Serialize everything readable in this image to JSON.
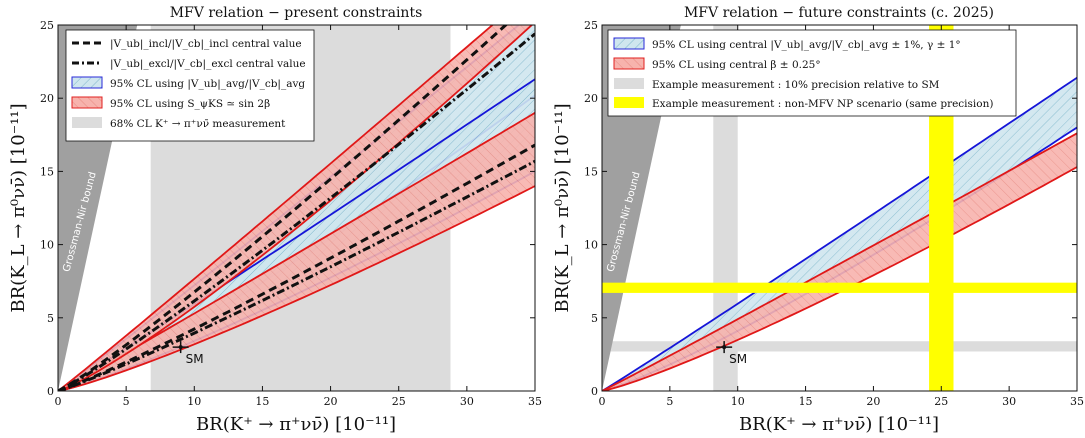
{
  "chart_data": [
    {
      "type": "area",
      "title": "MFV relation  −  present constraints",
      "xlabel": "BR(K⁺ → π⁺νν̄) [10⁻¹¹]",
      "ylabel": "BR(K_L → π⁰νν̄) [10⁻¹¹]",
      "xlim": [
        0,
        35
      ],
      "ylim": [
        0,
        25
      ],
      "x_ticks": [
        "0",
        "5",
        "10",
        "15",
        "20",
        "25",
        "30",
        "35"
      ],
      "y_ticks": [
        "0",
        "5",
        "10",
        "15",
        "20",
        "25"
      ],
      "gn_label": "Grossman-Nir bound",
      "sm_label": "SM",
      "sm_point": {
        "x": 9.0,
        "y": 3.0
      },
      "measurement_band_x": [
        6.8,
        28.8
      ],
      "bands": [
        {
          "style": "blue",
          "inner_at_x35": 20.2,
          "outer_at_x35": 25.9
        },
        {
          "style": "blue",
          "inner_at_x35": 15.0,
          "outer_at_x35": 21.3
        },
        {
          "style": "red",
          "inner_at_x35": 14.0,
          "outer_at_x35": 19.0
        },
        {
          "style": "red",
          "inner_at_x35": 25.2,
          "outer_at_x35": 27.5
        }
      ],
      "lines": [
        {
          "style": "dashed",
          "at_x35": 26.8
        },
        {
          "style": "dashed",
          "at_x35": 16.8
        },
        {
          "style": "dashdot",
          "at_x35": 24.4
        },
        {
          "style": "dashdot",
          "at_x35": 15.7
        }
      ],
      "legend": [
        {
          "swatch": "dash",
          "text": "|V_ub|_incl/|V_cb|_incl central value"
        },
        {
          "swatch": "dashdot",
          "text": "|V_ub|_excl/|V_cb|_excl central value"
        },
        {
          "swatch": "blue-hatch",
          "text": "95% CL using |V_ub|_avg/|V_cb|_avg"
        },
        {
          "swatch": "red-hatch",
          "text": "95% CL using S_ψKS ≃ sin 2β"
        },
        {
          "swatch": "gray",
          "text": "68% CL K⁺ → π⁺νν̄ measurement"
        }
      ]
    },
    {
      "type": "area",
      "title": "MFV relation  −  future constraints (c. 2025)",
      "xlabel": "BR(K⁺ → π⁺νν̄) [10⁻¹¹]",
      "ylabel": "BR(K_L → π⁰νν̄) [10⁻¹¹]",
      "xlim": [
        0,
        35
      ],
      "ylim": [
        0,
        25
      ],
      "x_ticks": [
        "0",
        "5",
        "10",
        "15",
        "20",
        "25",
        "30",
        "35"
      ],
      "y_ticks": [
        "0",
        "5",
        "10",
        "15",
        "20",
        "25"
      ],
      "gn_label": "Grossman-Nir bound",
      "sm_label": "SM",
      "sm_point": {
        "x": 9.0,
        "y": 3.0
      },
      "gray_vertical_x": [
        8.2,
        10.0
      ],
      "gray_horizontal_y": [
        2.7,
        3.4
      ],
      "yellow_vertical_x": [
        24.1,
        25.9
      ],
      "yellow_horizontal_y": [
        6.7,
        7.4
      ],
      "bands": [
        {
          "style": "blue",
          "inner_at_x35": 18.0,
          "outer_at_x35": 21.4
        },
        {
          "style": "red",
          "inner_at_x35": 15.3,
          "outer_at_x35": 17.6
        }
      ],
      "legend": [
        {
          "swatch": "blue-hatch",
          "text": "95% CL using central |V_ub|_avg/|V_cb|_avg ± 1%, γ ± 1°"
        },
        {
          "swatch": "red-hatch",
          "text": "95% CL using central β ± 0.25°"
        },
        {
          "swatch": "gray",
          "text": "Example measurement :  10% precision relative to SM"
        },
        {
          "swatch": "yellow",
          "text": "Example measurement :  non-MFV NP scenario (same precision)"
        }
      ]
    }
  ]
}
